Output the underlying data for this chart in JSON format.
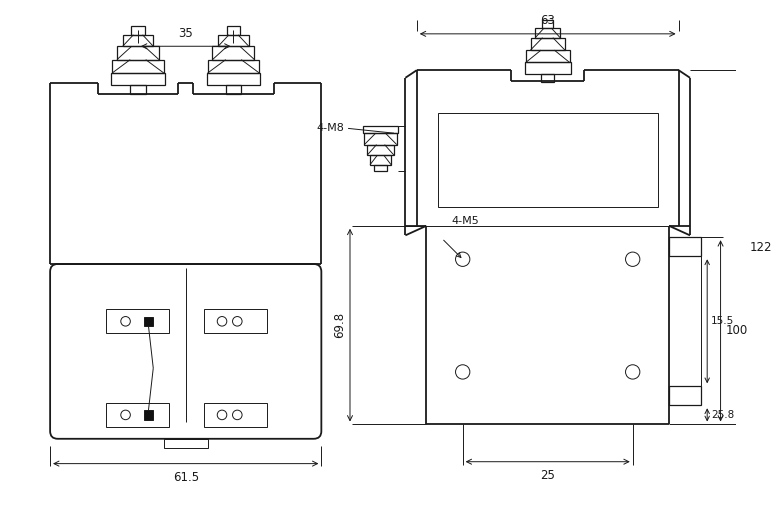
{
  "bg_color": "#ffffff",
  "line_color": "#1a1a1a",
  "fig_width": 7.6,
  "fig_height": 5.11,
  "dpi": 100,
  "dims": {
    "left_35": "35",
    "left_61_5": "61.5",
    "right_63": "63",
    "right_69_8": "69.8",
    "right_100": "100",
    "right_122": "122",
    "right_15_5": "15.5",
    "right_25_8": "25.8",
    "right_25": "25",
    "label_4M8": "4-M8",
    "label_4M5": "4-M5"
  }
}
